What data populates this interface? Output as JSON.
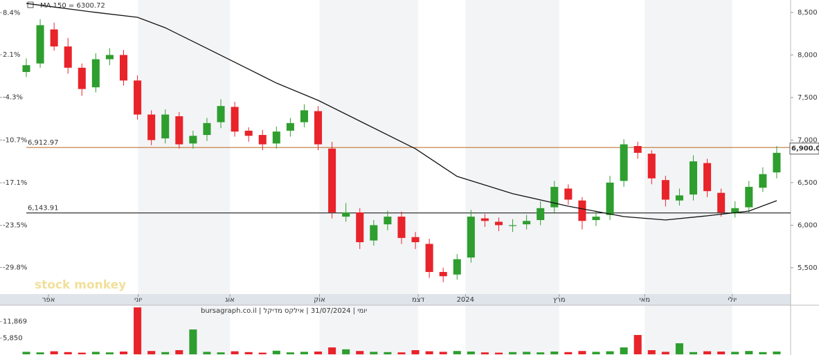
{
  "chart_data": {
    "type": "candlestick",
    "watermark": "stock monkey",
    "footer": "יומי | 31/07/2024 | אילקס מדיקל | bursagraph.co.il",
    "x": [
      0,
      2,
      4,
      6,
      8,
      10,
      12,
      14,
      16,
      18,
      20,
      22,
      24,
      26,
      28,
      30,
      32,
      34,
      36,
      38,
      40,
      42,
      44,
      46,
      48,
      50,
      52,
      54,
      56,
      58,
      60,
      62,
      64,
      66,
      68,
      70,
      72,
      74,
      76,
      78,
      80,
      82,
      84,
      86,
      88,
      90,
      92,
      94,
      96,
      98,
      100,
      102,
      104,
      106,
      108
    ],
    "open": [
      7800,
      7900,
      8300,
      8100,
      7850,
      7620,
      7950,
      8000,
      7700,
      7300,
      7020,
      7280,
      6960,
      7060,
      7210,
      7390,
      7110,
      7060,
      6960,
      7110,
      7210,
      7340,
      6900,
      6100,
      6150,
      5820,
      6010,
      6100,
      5860,
      5780,
      5450,
      5420,
      5620,
      6080,
      6040,
      5990,
      6010,
      6060,
      6210,
      6430,
      6290,
      6060,
      6120,
      6520,
      6930,
      6840,
      6530,
      6290,
      6360,
      6730,
      6380,
      6140,
      6210,
      6440,
      6620
    ],
    "high": [
      7960,
      8420,
      8380,
      8200,
      7900,
      8020,
      8080,
      8060,
      7760,
      7350,
      7360,
      7330,
      7110,
      7260,
      7480,
      7450,
      7150,
      7120,
      7160,
      7260,
      7420,
      7400,
      6980,
      6260,
      6200,
      6060,
      6170,
      6160,
      5920,
      5840,
      5500,
      5660,
      6180,
      6130,
      6090,
      6070,
      6120,
      6280,
      6520,
      6480,
      6330,
      6170,
      6580,
      7010,
      6980,
      6880,
      6580,
      6430,
      6820,
      6780,
      6430,
      6280,
      6520,
      6680,
      6930
    ],
    "low": [
      7740,
      7850,
      8050,
      7780,
      7520,
      7560,
      7880,
      7640,
      7240,
      6940,
      6960,
      6900,
      6900,
      6990,
      7140,
      7040,
      6980,
      6880,
      6900,
      7040,
      7150,
      6880,
      6080,
      6040,
      5720,
      5760,
      5940,
      5780,
      5720,
      5380,
      5330,
      5360,
      5560,
      5980,
      5930,
      5920,
      5950,
      6000,
      6150,
      6240,
      5950,
      5990,
      6060,
      6450,
      6780,
      6480,
      6220,
      6230,
      6290,
      6330,
      6100,
      6090,
      6150,
      6390,
      6550
    ],
    "close": [
      7880,
      8350,
      8100,
      7850,
      7600,
      7950,
      8000,
      7700,
      7300,
      7000,
      7300,
      6950,
      7050,
      7200,
      7400,
      7100,
      7050,
      6950,
      7100,
      7200,
      7350,
      6950,
      6150,
      6150,
      5800,
      6000,
      6100,
      5850,
      5800,
      5450,
      5400,
      5600,
      6100,
      6050,
      6000,
      6000,
      6050,
      6200,
      6450,
      6300,
      6050,
      6100,
      6500,
      6950,
      6850,
      6550,
      6300,
      6350,
      6750,
      6400,
      6150,
      6200,
      6450,
      6600,
      6850
    ],
    "up_color": "#2e9e2e",
    "down_color": "#e8232a",
    "ma": {
      "name": "MA 150 = 6300.72",
      "color": "#111111",
      "x": [
        0,
        10,
        16,
        20,
        26,
        32,
        36,
        42,
        48,
        56,
        62,
        70,
        78,
        86,
        92,
        98,
        104,
        108
      ],
      "values": [
        8606,
        8500,
        8443,
        8320,
        8077,
        7833,
        7670,
        7467,
        7223,
        6898,
        6573,
        6370,
        6223,
        6101,
        6061,
        6110,
        6166,
        6288
      ]
    },
    "xlim": [
      0,
      110
    ],
    "xticks": [
      {
        "value": 3.2,
        "label": "אפר"
      },
      {
        "value": 16.1,
        "label": "יוני"
      },
      {
        "value": 29.3,
        "label": "אוג"
      },
      {
        "value": 42.2,
        "label": "אוק"
      },
      {
        "value": 56.4,
        "label": "דצמ"
      },
      {
        "value": 63.2,
        "label": "2024"
      },
      {
        "value": 76.7,
        "label": "מרץ"
      },
      {
        "value": 89,
        "label": "מאי"
      },
      {
        "value": 101.6,
        "label": "יולי"
      }
    ],
    "ylim": [
      5190,
      8646
    ],
    "yticks": [
      {
        "value": 5500,
        "label": "5,500"
      },
      {
        "value": 6000,
        "label": "6,000"
      },
      {
        "value": 6500,
        "label": "6,500"
      },
      {
        "value": 7000,
        "label": "7,000"
      },
      {
        "value": 7500,
        "label": "7,500"
      },
      {
        "value": 8000,
        "label": "8,000"
      },
      {
        "value": 8500,
        "label": "8,500"
      }
    ],
    "y2lim": [
      -33.8,
      10.3
    ],
    "y2ticks": [
      {
        "value": 8.4,
        "label": "8.4%"
      },
      {
        "value": 2.1,
        "label": "2.1%"
      },
      {
        "value": -4.3,
        "label": "-4.3%"
      },
      {
        "value": -10.7,
        "label": "-10.7%"
      },
      {
        "value": -17.1,
        "label": "-17.1%"
      },
      {
        "value": -23.5,
        "label": "-23.5%"
      },
      {
        "value": -29.8,
        "label": "-29.8%"
      }
    ],
    "levels": [
      {
        "value": 6912.97,
        "label": "6,912.97",
        "color": "#b8651e"
      },
      {
        "value": 6143.91,
        "label": "6,143.91",
        "color": "#000000"
      }
    ],
    "last_price": {
      "value": 6900,
      "label": "6,900.00"
    },
    "volume": {
      "values": [
        900,
        700,
        1100,
        800,
        600,
        900,
        700,
        1000,
        17000,
        1200,
        800,
        1500,
        9000,
        900,
        700,
        1100,
        800,
        600,
        1300,
        700,
        900,
        1000,
        2500,
        1800,
        1200,
        900,
        800,
        700,
        1500,
        1100,
        900,
        1200,
        1000,
        700,
        600,
        800,
        900,
        700,
        1000,
        800,
        1200,
        900,
        1100,
        2500,
        7000,
        1500,
        900,
        4000,
        800,
        1100,
        1000,
        900,
        1200,
        800,
        1000
      ],
      "ylim": [
        0,
        17300
      ],
      "yticks": [
        {
          "value": 5850,
          "label": "5,850"
        },
        {
          "value": 11869,
          "label": "11,869"
        }
      ]
    }
  }
}
